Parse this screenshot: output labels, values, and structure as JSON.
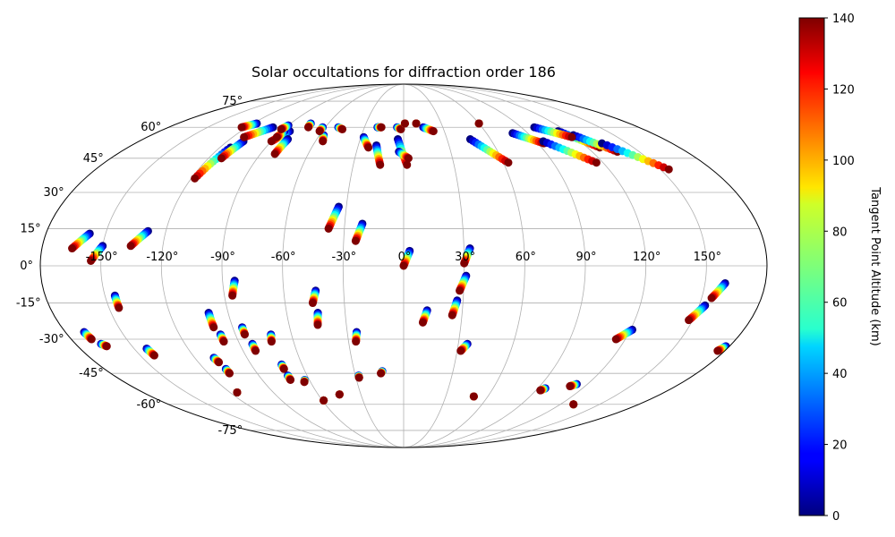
{
  "chart_data": {
    "type": "scatter",
    "projection": "mollweide",
    "title": "Solar occultations for diffraction order 186",
    "lon_ticks": [
      {
        "value": -150,
        "label": "-150°"
      },
      {
        "value": -120,
        "label": "-120°"
      },
      {
        "value": -90,
        "label": "-90°"
      },
      {
        "value": -60,
        "label": "-60°"
      },
      {
        "value": -30,
        "label": "-30°"
      },
      {
        "value": 0,
        "label": "0°"
      },
      {
        "value": 30,
        "label": "30°"
      },
      {
        "value": 60,
        "label": "60°"
      },
      {
        "value": 90,
        "label": "90°"
      },
      {
        "value": 120,
        "label": "120°"
      },
      {
        "value": 150,
        "label": "150°"
      }
    ],
    "lat_ticks": [
      {
        "value": 75,
        "label": "75°"
      },
      {
        "value": 60,
        "label": "60°"
      },
      {
        "value": 45,
        "label": "45°"
      },
      {
        "value": 30,
        "label": "30°"
      },
      {
        "value": 15,
        "label": "15°"
      },
      {
        "value": 0,
        "label": "0°"
      },
      {
        "value": -15,
        "label": "-15°"
      },
      {
        "value": -30,
        "label": "-30°"
      },
      {
        "value": -45,
        "label": "-45°"
      },
      {
        "value": -60,
        "label": "-60°"
      },
      {
        "value": -75,
        "label": "-75°"
      }
    ],
    "colorbar": {
      "label": "Tangent Point Altitude (km)",
      "colormap": "jet",
      "range": [
        0,
        140
      ],
      "ticks": [
        {
          "value": 0,
          "label": "0"
        },
        {
          "value": 20,
          "label": "20"
        },
        {
          "value": 40,
          "label": "40"
        },
        {
          "value": 60,
          "label": "60"
        },
        {
          "value": 80,
          "label": "80"
        },
        {
          "value": 100,
          "label": "100"
        },
        {
          "value": 120,
          "label": "120"
        },
        {
          "value": 140,
          "label": "140"
        }
      ]
    },
    "altitude_range_km": [
      0,
      140
    ],
    "occultations": [
      {
        "lon_start": -158,
        "lat_start": 13,
        "lon_end": -165,
        "lat_end": 7
      },
      {
        "lon_start": -150,
        "lat_start": 8,
        "lon_end": -155,
        "lat_end": 2
      },
      {
        "lon_start": -129,
        "lat_start": 14,
        "lon_end": -136,
        "lat_end": 8
      },
      {
        "lon_start": -113,
        "lat_start": 50,
        "lon_end": -118,
        "lat_end": 36
      },
      {
        "lon_start": -109,
        "lat_start": 53,
        "lon_end": -112,
        "lat_end": 45
      },
      {
        "lon_start": -100,
        "lat_start": 60,
        "lon_end": -112,
        "lat_end": 55
      },
      {
        "lon_start": -84,
        "lat_start": 58,
        "lon_end": -90,
        "lat_end": 53
      },
      {
        "lon_start": -80,
        "lat_start": 54,
        "lon_end": -81,
        "lat_end": 47
      },
      {
        "lon_start": -88,
        "lat_start": 58,
        "lon_end": -89,
        "lat_end": 55
      },
      {
        "lon_start": -74,
        "lat_start": 62,
        "lon_end": -73,
        "lat_end": 60
      },
      {
        "lon_start": -57,
        "lat_start": 56,
        "lon_end": -55,
        "lat_end": 53
      },
      {
        "lon_start": -50,
        "lat_start": 60,
        "lon_end": -46,
        "lat_end": 59
      },
      {
        "lon_start": -28,
        "lat_start": 55,
        "lon_end": -23,
        "lat_end": 50
      },
      {
        "lon_start": -18,
        "lat_start": 51,
        "lon_end": -14,
        "lat_end": 42
      },
      {
        "lon_start": -20,
        "lat_start": 60,
        "lon_end": -17,
        "lat_end": 60
      },
      {
        "lon_start": -4,
        "lat_start": 54,
        "lon_end": 2,
        "lat_end": 42
      },
      {
        "lon_start": -3,
        "lat_start": 48,
        "lon_end": 3,
        "lat_end": 45
      },
      {
        "lon_start": -5,
        "lat_start": 60,
        "lon_end": -2,
        "lat_end": 59
      },
      {
        "lon_start": 15,
        "lat_start": 60,
        "lon_end": 22,
        "lat_end": 58
      },
      {
        "lon_start": 46,
        "lat_start": 54,
        "lon_end": 63,
        "lat_end": 43
      },
      {
        "lon_start": 79,
        "lat_start": 57,
        "lon_end": 94,
        "lat_end": 52
      },
      {
        "lon_start": 95,
        "lat_start": 53,
        "lon_end": 116,
        "lat_end": 43
      },
      {
        "lon_start": 114,
        "lat_start": 58,
        "lon_end": 128,
        "lat_end": 50
      },
      {
        "lon_start": 121,
        "lat_start": 56,
        "lon_end": 136,
        "lat_end": 48
      },
      {
        "lon_start": 133,
        "lat_start": 52,
        "lon_end": 155,
        "lat_end": 40
      },
      {
        "lon_start": -34,
        "lat_start": 24,
        "lon_end": -38,
        "lat_end": 15
      },
      {
        "lon_start": -21,
        "lat_start": 17,
        "lon_end": -24,
        "lat_end": 10
      },
      {
        "lon_start": 3,
        "lat_start": 6,
        "lon_end": 0,
        "lat_end": 0
      },
      {
        "lon_start": 33,
        "lat_start": 7,
        "lon_end": 30,
        "lat_end": 1
      },
      {
        "lon_start": 31,
        "lat_start": -4,
        "lon_end": 28,
        "lat_end": -10
      },
      {
        "lon_start": -145,
        "lat_start": -12,
        "lon_end": -145,
        "lat_end": -17
      },
      {
        "lon_start": -84,
        "lat_start": -6,
        "lon_end": -86,
        "lat_end": -12
      },
      {
        "lon_start": -44,
        "lat_start": -10,
        "lon_end": -46,
        "lat_end": -15
      },
      {
        "lon_start": -44,
        "lat_start": -19,
        "lon_end": -45,
        "lat_end": -24
      },
      {
        "lon_start": 12,
        "lat_start": -18,
        "lon_end": 10,
        "lat_end": -23
      },
      {
        "lon_start": 27,
        "lat_start": -14,
        "lon_end": 25,
        "lat_end": -20
      },
      {
        "lon_start": 160,
        "lat_start": -7,
        "lon_end": 155,
        "lat_end": -13
      },
      {
        "lon_start": 153,
        "lat_start": -16,
        "lon_end": 148,
        "lat_end": -22
      },
      {
        "lon_start": 121,
        "lat_start": -26,
        "lon_end": 115,
        "lat_end": -30
      },
      {
        "lon_start": -170,
        "lat_start": -27,
        "lon_end": -169,
        "lat_end": -30
      },
      {
        "lon_start": -166,
        "lat_start": -32,
        "lon_end": -164,
        "lat_end": -33
      },
      {
        "lon_start": -143,
        "lat_start": -34,
        "lon_end": -142,
        "lat_end": -37
      },
      {
        "lon_start": -100,
        "lat_start": -19,
        "lon_end": -100,
        "lat_end": -25
      },
      {
        "lon_start": -98,
        "lat_start": -28,
        "lon_end": -98,
        "lat_end": -31
      },
      {
        "lon_start": -85,
        "lat_start": -25,
        "lon_end": -85,
        "lat_end": -28
      },
      {
        "lon_start": -83,
        "lat_start": -32,
        "lon_end": -83,
        "lat_end": -35
      },
      {
        "lon_start": -71,
        "lat_start": -28,
        "lon_end": -72,
        "lat_end": -31
      },
      {
        "lon_start": -109,
        "lat_start": -38,
        "lon_end": -108,
        "lat_end": -40
      },
      {
        "lon_start": -107,
        "lat_start": -43,
        "lon_end": -107,
        "lat_end": -45
      },
      {
        "lon_start": -72,
        "lat_start": -41,
        "lon_end": -72,
        "lat_end": -43
      },
      {
        "lon_start": -72,
        "lat_start": -46,
        "lon_end": -72,
        "lat_end": -48
      },
      {
        "lon_start": -25,
        "lat_start": -27,
        "lon_end": -26,
        "lat_end": -31
      },
      {
        "lon_start": -13,
        "lat_start": -44,
        "lon_end": -14,
        "lat_end": -45
      },
      {
        "lon_start": -28,
        "lat_start": -46,
        "lon_end": -28,
        "lat_end": -47
      },
      {
        "lon_start": -63,
        "lat_start": -48,
        "lon_end": -64,
        "lat_end": -49
      },
      {
        "lon_start": -59,
        "lat_start": -58,
        "lon_end": -59,
        "lat_end": -58
      },
      {
        "lon_start": -115,
        "lat_start": -54,
        "lon_end": -115,
        "lat_end": -54
      },
      {
        "lon_start": -45,
        "lat_start": -55,
        "lon_end": -45,
        "lat_end": -55
      },
      {
        "lon_start": 35,
        "lat_start": -32,
        "lon_end": 32,
        "lat_end": -35
      },
      {
        "lon_start": 50,
        "lat_start": -56,
        "lon_end": 50,
        "lat_end": -56
      },
      {
        "lon_start": 95,
        "lat_start": -52,
        "lon_end": 93,
        "lat_end": -53
      },
      {
        "lon_start": 113,
        "lat_start": -50,
        "lon_end": 110,
        "lat_end": -51
      },
      {
        "lon_start": 130,
        "lat_start": -60,
        "lon_end": 130,
        "lat_end": -60
      },
      {
        "lon_start": 178,
        "lat_start": -33,
        "lon_end": 176,
        "lat_end": -35
      },
      {
        "lon_start": -117,
        "lat_start": 62,
        "lon_end": -124,
        "lat_end": 60
      },
      {
        "lon_start": -90,
        "lat_start": 61,
        "lon_end": -92,
        "lat_end": 59
      },
      {
        "lon_start": -62,
        "lat_start": 60,
        "lon_end": -62,
        "lat_end": 58
      },
      {
        "lon_start": 1,
        "lat_start": 62,
        "lon_end": 1,
        "lat_end": 62
      },
      {
        "lon_start": 10,
        "lat_start": 62,
        "lon_end": 10,
        "lat_end": 62
      },
      {
        "lon_start": 60,
        "lat_start": 62,
        "lon_end": 60,
        "lat_end": 62
      },
      {
        "lon_start": 100,
        "lat_start": 60,
        "lon_end": 118,
        "lat_end": 55
      }
    ]
  }
}
